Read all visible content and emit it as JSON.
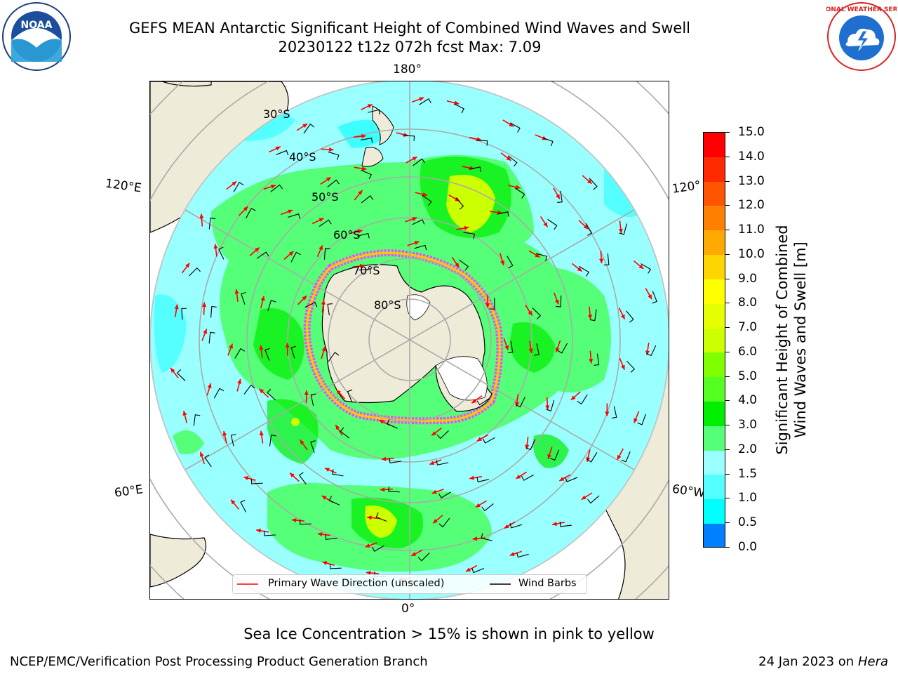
{
  "title": {
    "line1": "GEFS MEAN Antarctic Significant Height of Combined Wind Waves and Swell",
    "line2": "20230122 t12z 072h fcst   Max: 7.09"
  },
  "map": {
    "lon_labels": {
      "top": "180°",
      "bottom": "0°",
      "left_upper": "120°E",
      "left_lower": "60°E",
      "right_upper": "120°",
      "right_lower": "60°W"
    },
    "lat_labels": [
      "30°S",
      "40°S",
      "50°S",
      "60°S",
      "70°S",
      "80°S"
    ],
    "land_color": "#efebd9",
    "ice_colors": [
      "#ff40ff",
      "#ffc800",
      "#ffff80"
    ]
  },
  "legend": {
    "wave_label": "Primary Wave Direction (unscaled)",
    "wind_label": "Wind Barbs",
    "wave_color": "#ff0000",
    "wind_color": "#000000"
  },
  "colorbar": {
    "ticks": [
      "15.0",
      "14.0",
      "13.0",
      "12.0",
      "11.0",
      "10.0",
      "9.0",
      "8.0",
      "7.0",
      "6.0",
      "5.0",
      "4.0",
      "3.0",
      "2.0",
      "1.5",
      "1.0",
      "0.5",
      "0.0"
    ],
    "colors": [
      "#ff0000",
      "#ff2a00",
      "#ff5500",
      "#ff8000",
      "#ffaa00",
      "#ffd500",
      "#ffff00",
      "#e6ff00",
      "#ccff00",
      "#80ff00",
      "#55ff22",
      "#00ee00",
      "#55ff77",
      "#99ffff",
      "#55ffff",
      "#00ffff",
      "#0080ff",
      "#0000ff"
    ],
    "label_line1": "Significant Height of Combined",
    "label_line2": "Wind Waves and Swell [m]"
  },
  "footer": {
    "note": "Sea Ice Concentration > 15% is shown in pink to yellow",
    "left": "NCEP/EMC/Verification Post Processing Product Generation Branch",
    "right_date": "24 Jan 2023 on ",
    "right_host": "Hera"
  },
  "logos": {
    "noaa": "NOAA",
    "nws": "NATIONAL WEATHER SERVICE"
  }
}
